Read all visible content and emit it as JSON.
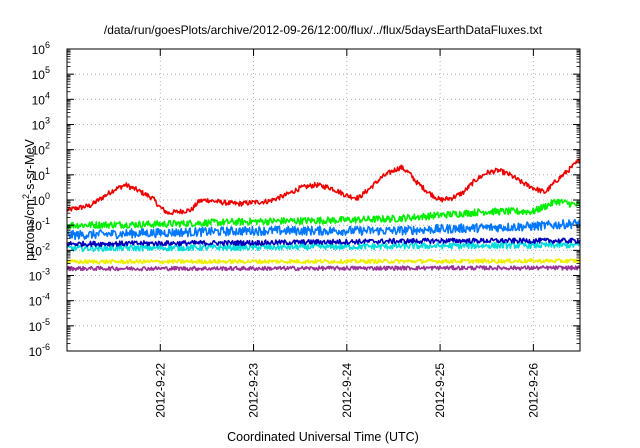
{
  "chart_data": {
    "type": "line",
    "title": "/data/run/goesPlots/archive/2012-09-26/12:00/flux/../flux/5daysEarthDataFluxes.txt",
    "xlabel": "Coordinated Universal Time (UTC)",
    "ylabel_parts": [
      "protons/cm",
      "2",
      "-s-sr-MeV"
    ],
    "x_scale": "time",
    "x_range": [
      "2012-09-21 00:00",
      "2012-09-26 12:00"
    ],
    "x_ticks": [
      {
        "value": "2012-09-22 00:00",
        "label": "2012-9-22"
      },
      {
        "value": "2012-09-23 00:00",
        "label": "2012-9-23"
      },
      {
        "value": "2012-09-24 00:00",
        "label": "2012-9-24"
      },
      {
        "value": "2012-09-25 00:00",
        "label": "2012-9-25"
      },
      {
        "value": "2012-09-26 00:00",
        "label": "2012-9-26"
      }
    ],
    "y_scale": "log",
    "ylim": [
      1e-06,
      1000000.0
    ],
    "y_ticks": [
      {
        "value": 1e-06,
        "base": "10",
        "exp": "-6"
      },
      {
        "value": 1e-05,
        "base": "10",
        "exp": "-5"
      },
      {
        "value": 0.0001,
        "base": "10",
        "exp": "-4"
      },
      {
        "value": 0.001,
        "base": "10",
        "exp": "-3"
      },
      {
        "value": 0.01,
        "base": "10",
        "exp": "-2"
      },
      {
        "value": 0.1,
        "base": "10",
        "exp": "-1"
      },
      {
        "value": 1,
        "base": "10",
        "exp": "0"
      },
      {
        "value": 10.0,
        "base": "10",
        "exp": "1"
      },
      {
        "value": 100.0,
        "base": "10",
        "exp": "2"
      },
      {
        "value": 1000.0,
        "base": "10",
        "exp": "3"
      },
      {
        "value": 10000.0,
        "base": "10",
        "exp": "4"
      },
      {
        "value": 100000.0,
        "base": "10",
        "exp": "5"
      },
      {
        "value": 1000000.0,
        "base": "10",
        "exp": "6"
      }
    ],
    "grid": true,
    "series": [
      {
        "color": "#ee0000",
        "x": [
          "2012-09-21 00:00",
          "2012-09-21 06:00",
          "2012-09-21 12:00",
          "2012-09-21 15:00",
          "2012-09-21 18:00",
          "2012-09-21 22:00",
          "2012-09-22 00:00",
          "2012-09-22 02:00",
          "2012-09-22 05:00",
          "2012-09-22 08:00",
          "2012-09-22 10:00",
          "2012-09-22 12:00",
          "2012-09-22 16:00",
          "2012-09-22 20:00",
          "2012-09-23 00:00",
          "2012-09-23 04:00",
          "2012-09-23 08:00",
          "2012-09-23 12:00",
          "2012-09-23 16:00",
          "2012-09-23 20:00",
          "2012-09-24 00:00",
          "2012-09-24 03:00",
          "2012-09-24 06:00",
          "2012-09-24 09:00",
          "2012-09-24 12:00",
          "2012-09-24 14:00",
          "2012-09-24 16:00",
          "2012-09-24 18:00",
          "2012-09-24 21:00",
          "2012-09-25 00:00",
          "2012-09-25 03:00",
          "2012-09-25 06:00",
          "2012-09-25 09:00",
          "2012-09-25 12:00",
          "2012-09-25 15:00",
          "2012-09-25 18:00",
          "2012-09-25 21:00",
          "2012-09-26 00:00",
          "2012-09-26 03:00",
          "2012-09-26 06:00",
          "2012-09-26 09:00",
          "2012-09-26 12:00"
        ],
        "y": [
          0.4,
          0.6,
          2.5,
          4.0,
          2.5,
          1.2,
          0.5,
          0.3,
          0.35,
          0.4,
          0.9,
          1.0,
          0.8,
          0.7,
          0.8,
          0.9,
          1.5,
          3.0,
          4.0,
          3.0,
          1.5,
          1.2,
          3.0,
          8.0,
          15,
          20,
          12,
          5.0,
          2.0,
          1.0,
          1.2,
          2.0,
          6.0,
          12,
          15,
          10,
          5.0,
          3.0,
          2.0,
          6.0,
          15,
          40
        ]
      },
      {
        "color": "#00ee00",
        "x": [
          "2012-09-21 00:00",
          "2012-09-22 00:00",
          "2012-09-23 00:00",
          "2012-09-24 00:00",
          "2012-09-24 12:00",
          "2012-09-25 00:00",
          "2012-09-25 12:00",
          "2012-09-26 00:00",
          "2012-09-26 06:00",
          "2012-09-26 12:00"
        ],
        "y": [
          0.1,
          0.11,
          0.14,
          0.16,
          0.18,
          0.25,
          0.35,
          0.35,
          0.9,
          0.6
        ]
      },
      {
        "color": "#0077ff",
        "x": [
          "2012-09-21 00:00",
          "2012-09-22 00:00",
          "2012-09-23 00:00",
          "2012-09-24 00:00",
          "2012-09-24 12:00",
          "2012-09-25 00:00",
          "2012-09-25 12:00",
          "2012-09-26 00:00",
          "2012-09-26 12:00"
        ],
        "y": [
          0.04,
          0.05,
          0.06,
          0.06,
          0.06,
          0.07,
          0.08,
          0.09,
          0.12
        ]
      },
      {
        "color": "#00dddd",
        "x": [
          "2012-09-21 00:00",
          "2012-09-23 00:00",
          "2012-09-25 00:00",
          "2012-09-26 12:00"
        ],
        "y": [
          0.012,
          0.013,
          0.015,
          0.016
        ]
      },
      {
        "color": "#0000bb",
        "x": [
          "2012-09-21 00:00",
          "2012-09-22 00:00",
          "2012-09-23 00:00",
          "2012-09-24 00:00",
          "2012-09-25 00:00",
          "2012-09-26 00:00",
          "2012-09-26 12:00"
        ],
        "y": [
          0.018,
          0.019,
          0.02,
          0.022,
          0.024,
          0.024,
          0.024
        ]
      },
      {
        "color": "#eeee00",
        "x": [
          "2012-09-21 00:00",
          "2012-09-23 00:00",
          "2012-09-25 00:00",
          "2012-09-26 12:00"
        ],
        "y": [
          0.0035,
          0.0036,
          0.0037,
          0.0038
        ]
      },
      {
        "color": "#993399",
        "x": [
          "2012-09-21 00:00",
          "2012-09-23 00:00",
          "2012-09-25 00:00",
          "2012-09-26 12:00"
        ],
        "y": [
          0.0019,
          0.0019,
          0.002,
          0.002
        ]
      }
    ]
  }
}
